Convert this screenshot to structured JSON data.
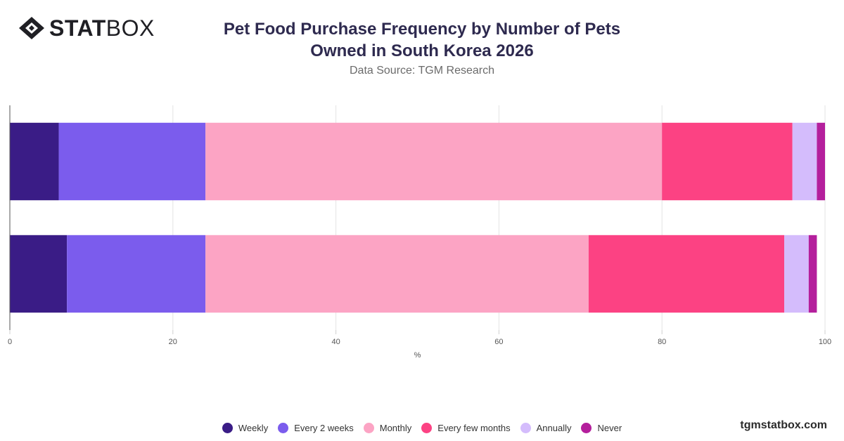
{
  "brand": {
    "logo_bold": "STAT",
    "logo_light": "BOX",
    "footer": "tgmstatbox.com"
  },
  "header": {
    "title_line1": "Pet Food Purchase Frequency by Number of Pets",
    "title_line2": "Owned in South Korea 2026",
    "subtitle": "Data Source: TGM Research"
  },
  "colors": {
    "weekly": "#3a1c86",
    "every_2_weeks": "#7b5ced",
    "monthly": "#fca4c4",
    "every_few_months": "#fc4283",
    "annually": "#d4bcfc",
    "never": "#b41f9c"
  },
  "chart_data": {
    "type": "bar",
    "orientation": "horizontal",
    "stacked": true,
    "categories": [
      "",
      ""
    ],
    "xlabel": "%",
    "xlim": [
      0,
      100
    ],
    "xticks": [
      0,
      20,
      40,
      60,
      80,
      100
    ],
    "grid": true,
    "legend_position": "bottom",
    "series": [
      {
        "name": "Weekly",
        "color": "#3a1c86",
        "values": [
          6,
          7
        ]
      },
      {
        "name": "Every 2 weeks",
        "color": "#7b5ced",
        "values": [
          18,
          17
        ]
      },
      {
        "name": "Monthly",
        "color": "#fca4c4",
        "values": [
          56,
          47
        ]
      },
      {
        "name": "Every few months",
        "color": "#fc4283",
        "values": [
          16,
          24
        ]
      },
      {
        "name": "Annually",
        "color": "#d4bcfc",
        "values": [
          3,
          3
        ]
      },
      {
        "name": "Never",
        "color": "#b41f9c",
        "values": [
          1,
          1
        ]
      }
    ]
  }
}
